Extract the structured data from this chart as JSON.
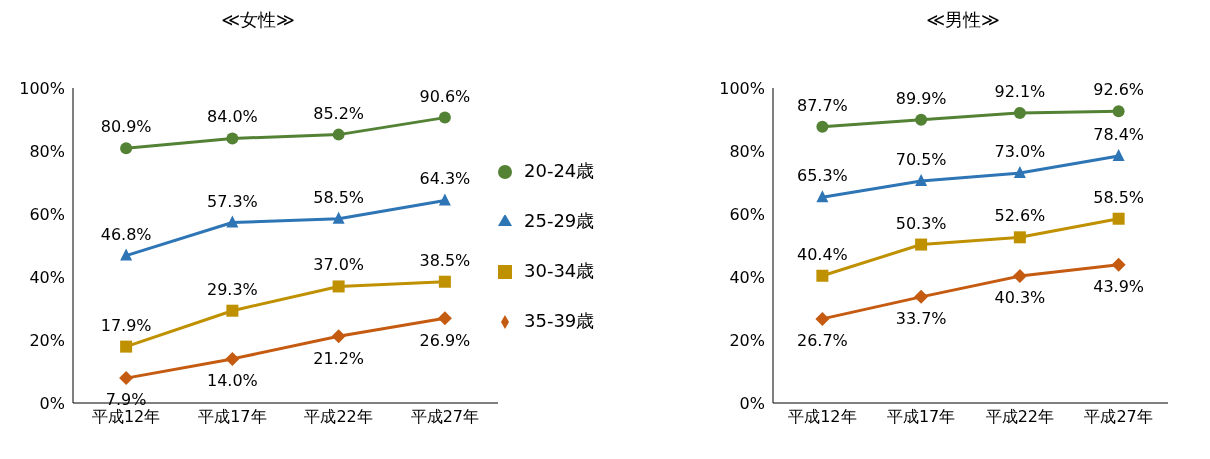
{
  "chart_data": [
    {
      "type": "line",
      "title": "≪女性≫",
      "categories": [
        "平成12年",
        "平成17年",
        "平成22年",
        "平成27年"
      ],
      "ylim": [
        0,
        100
      ],
      "yticks": [
        {
          "value": 0,
          "label": "0%"
        },
        {
          "value": 20,
          "label": "20%"
        },
        {
          "value": 40,
          "label": "40%"
        },
        {
          "value": 60,
          "label": "60%"
        },
        {
          "value": 80,
          "label": "80%"
        },
        {
          "value": 100,
          "label": "100%"
        }
      ],
      "grid": false,
      "legend": "right",
      "series": [
        {
          "name": "20-24歳",
          "color": "#548235",
          "marker": "circle",
          "values": [
            80.9,
            84.0,
            85.2,
            90.6
          ],
          "value_labels": [
            "80.9%",
            "84.0%",
            "85.2%",
            "90.6%"
          ]
        },
        {
          "name": "25-29歳",
          "color": "#2e75b6",
          "marker": "triangle",
          "values": [
            46.8,
            57.3,
            58.5,
            64.3
          ],
          "value_labels": [
            "46.8%",
            "57.3%",
            "58.5%",
            "64.3%"
          ]
        },
        {
          "name": "30-34歳",
          "color": "#bf9000",
          "marker": "square",
          "values": [
            17.9,
            29.3,
            37.0,
            38.5
          ],
          "value_labels": [
            "17.9%",
            "29.3%",
            "37.0%",
            "38.5%"
          ]
        },
        {
          "name": "35-39歳",
          "color": "#c55a11",
          "marker": "diamond",
          "values": [
            7.9,
            14.0,
            21.2,
            26.9
          ],
          "value_labels": [
            "7.9%",
            "14.0%",
            "21.2%",
            "26.9%"
          ]
        }
      ]
    },
    {
      "type": "line",
      "title": "≪男性≫",
      "categories": [
        "平成12年",
        "平成17年",
        "平成22年",
        "平成27年"
      ],
      "ylim": [
        0,
        100
      ],
      "yticks": [
        {
          "value": 0,
          "label": "0%"
        },
        {
          "value": 20,
          "label": "20%"
        },
        {
          "value": 40,
          "label": "40%"
        },
        {
          "value": 60,
          "label": "60%"
        },
        {
          "value": 80,
          "label": "80%"
        },
        {
          "value": 100,
          "label": "100%"
        }
      ],
      "grid": false,
      "legend": false,
      "series": [
        {
          "color": "#548235",
          "marker": "circle",
          "values": [
            87.7,
            89.9,
            92.1,
            92.6
          ],
          "value_labels": [
            "87.7%",
            "89.9%",
            "92.1%",
            "92.6%"
          ]
        },
        {
          "color": "#2e75b6",
          "marker": "triangle",
          "values": [
            65.3,
            70.5,
            73.0,
            78.4
          ],
          "value_labels": [
            "65.3%",
            "70.5%",
            "73.0%",
            "78.4%"
          ]
        },
        {
          "color": "#bf9000",
          "marker": "square",
          "values": [
            40.4,
            50.3,
            52.6,
            58.5
          ],
          "value_labels": [
            "40.4%",
            "50.3%",
            "52.6%",
            "58.5%"
          ]
        },
        {
          "color": "#c55a11",
          "marker": "diamond",
          "values": [
            26.7,
            33.7,
            40.3,
            43.9
          ],
          "value_labels": [
            "26.7%",
            "33.7%",
            "40.3%",
            "43.9%"
          ]
        }
      ]
    }
  ]
}
